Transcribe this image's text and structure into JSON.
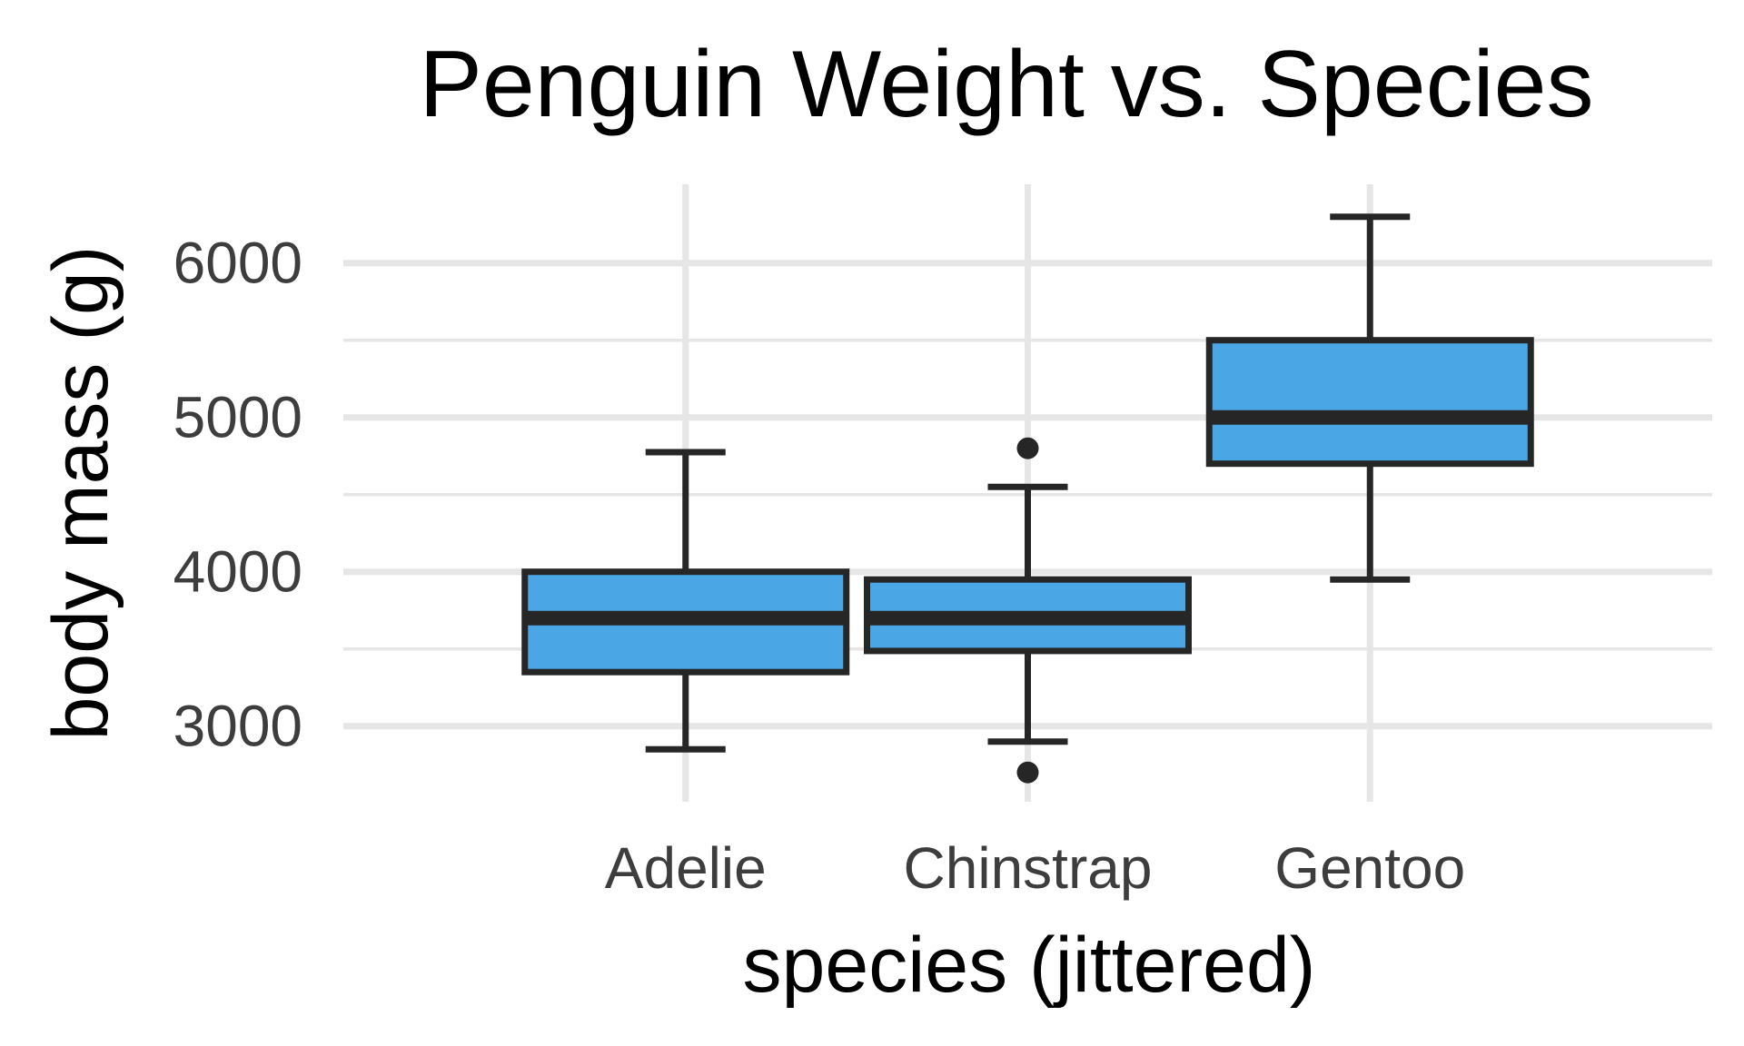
{
  "chart_data": {
    "type": "box",
    "title": "Penguin Weight vs. Species",
    "xlabel": "species (jittered)",
    "ylabel": "body mass (g)",
    "categories": [
      "Adelie",
      "Chinstrap",
      "Gentoo"
    ],
    "ylim": [
      2510,
      6510
    ],
    "yticks": [
      3000,
      4000,
      5000,
      6000
    ],
    "yticklabels": [
      "3000",
      "4000",
      "5000",
      "6000"
    ],
    "minor_gridlines": [
      3500,
      4500,
      5500
    ],
    "grid": true,
    "legend": "none",
    "box_fill": "#4aa6e4",
    "line_color": "#262626",
    "grid_color": "#e6e6e6",
    "boxes": [
      {
        "category": "Adelie",
        "whisker_low": 2850,
        "q1": 3350,
        "median": 3700,
        "q3": 4000,
        "whisker_high": 4775,
        "outliers": []
      },
      {
        "category": "Chinstrap",
        "whisker_low": 2900,
        "q1": 3487,
        "median": 3700,
        "q3": 3950,
        "whisker_high": 4550,
        "outliers": [
          2700,
          4800
        ]
      },
      {
        "category": "Gentoo",
        "whisker_low": 3950,
        "q1": 4700,
        "median": 5000,
        "q3": 5500,
        "whisker_high": 6300,
        "outliers": []
      }
    ]
  }
}
